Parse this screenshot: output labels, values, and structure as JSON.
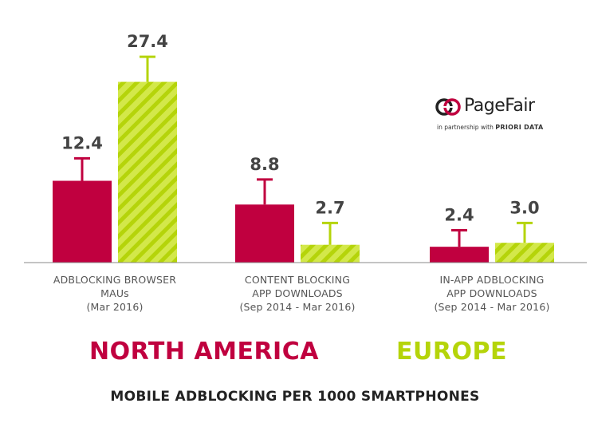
{
  "chart_data": {
    "type": "bar",
    "title": "MOBILE ADBLOCKING PER 1000 SMARTPHONES",
    "categories": [
      [
        "ADBLOCKING BROWSER",
        "MAUs",
        "(Mar 2016)"
      ],
      [
        "CONTENT BLOCKING",
        "APP DOWNLOADS",
        "(Sep 2014 - Mar 2016)"
      ],
      [
        "IN-APP ADBLOCKING",
        "APP DOWNLOADS",
        "(Sep 2014 - Mar 2016)"
      ]
    ],
    "series": [
      {
        "name": "NORTH AMERICA",
        "color": "#c0003f",
        "pattern": "solid",
        "values": [
          12.4,
          8.8,
          2.4
        ],
        "labels": [
          "12.4",
          "8.8",
          "2.4"
        ],
        "error_top": [
          15.8,
          12.6,
          4.9
        ]
      },
      {
        "name": "EUROPE",
        "color": "#b5d40a",
        "pattern": "diagonal-stripes",
        "values": [
          27.4,
          2.7,
          3.0
        ],
        "labels": [
          "27.4",
          "2.7",
          "3.0"
        ],
        "error_top": [
          31.2,
          6.0,
          6.0
        ]
      }
    ],
    "ylim": [
      0,
      34
    ],
    "grid": false,
    "legend": "bottom-text"
  },
  "logo": {
    "name": "PageFair",
    "partner_prefix": "in partnership with",
    "partner_name": "PRIORI DATA"
  },
  "colors": {
    "north_america": "#c0003f",
    "europe": "#b5d40a",
    "value_text": "#444444",
    "axis": "#888888"
  }
}
